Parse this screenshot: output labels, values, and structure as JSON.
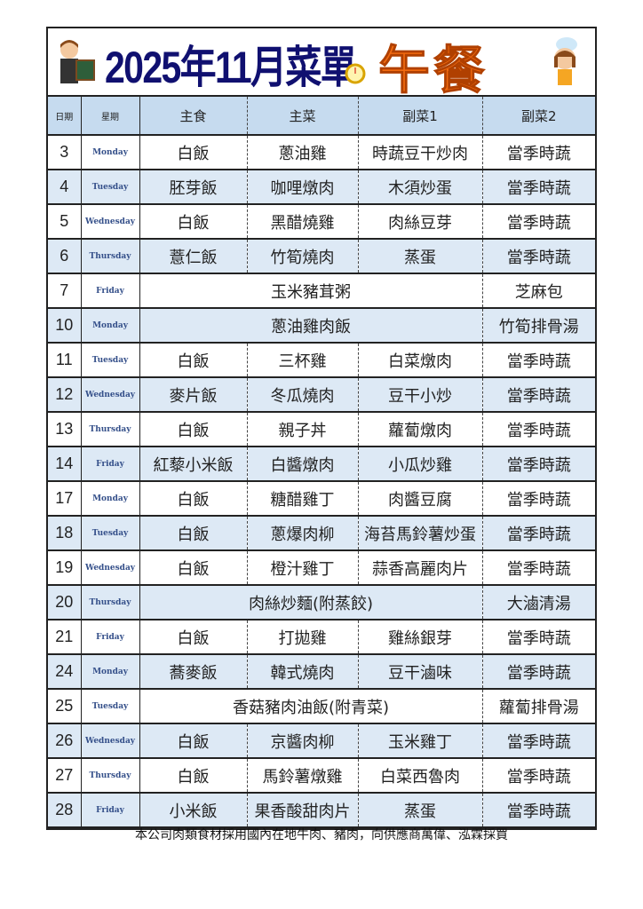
{
  "title": "2025年11月菜單",
  "meal": "午餐",
  "headers": {
    "date": "日期",
    "weekday": "星期",
    "staple": "主食",
    "main": "主菜",
    "side1": "副菜1",
    "side2": "副菜2"
  },
  "rows": [
    {
      "date": "3",
      "day": "Monday",
      "staple": "白飯",
      "main": "蔥油雞",
      "side1": "時蔬豆干炒肉",
      "side2": "當季時蔬"
    },
    {
      "date": "4",
      "day": "Tuesday",
      "staple": "胚芽飯",
      "main": "咖哩燉肉",
      "side1": "木須炒蛋",
      "side2": "當季時蔬"
    },
    {
      "date": "5",
      "day": "Wednesday",
      "staple": "白飯",
      "main": "黑醋燒雞",
      "side1": "肉絲豆芽",
      "side2": "當季時蔬"
    },
    {
      "date": "6",
      "day": "Thursday",
      "staple": "薏仁飯",
      "main": "竹筍燒肉",
      "side1": "蒸蛋",
      "side2": "當季時蔬"
    },
    {
      "date": "7",
      "day": "Friday",
      "merged": "玉米豬茸粥",
      "side2": "芝麻包"
    },
    {
      "date": "10",
      "day": "Monday",
      "merged": "蔥油雞肉飯",
      "side2": "竹筍排骨湯"
    },
    {
      "date": "11",
      "day": "Tuesday",
      "staple": "白飯",
      "main": "三杯雞",
      "side1": "白菜燉肉",
      "side2": "當季時蔬"
    },
    {
      "date": "12",
      "day": "Wednesday",
      "staple": "麥片飯",
      "main": "冬瓜燒肉",
      "side1": "豆干小炒",
      "side2": "當季時蔬"
    },
    {
      "date": "13",
      "day": "Thursday",
      "staple": "白飯",
      "main": "親子丼",
      "side1": "蘿蔔燉肉",
      "side2": "當季時蔬"
    },
    {
      "date": "14",
      "day": "Friday",
      "staple": "紅藜小米飯",
      "main": "白醬燉肉",
      "side1": "小瓜炒雞",
      "side2": "當季時蔬"
    },
    {
      "date": "17",
      "day": "Monday",
      "staple": "白飯",
      "main": "糖醋雞丁",
      "side1": "肉醬豆腐",
      "side2": "當季時蔬"
    },
    {
      "date": "18",
      "day": "Tuesday",
      "staple": "白飯",
      "main": "蔥爆肉柳",
      "side1": "海苔馬鈴薯炒蛋",
      "side2": "當季時蔬"
    },
    {
      "date": "19",
      "day": "Wednesday",
      "staple": "白飯",
      "main": "橙汁雞丁",
      "side1": "蒜香高麗肉片",
      "side2": "當季時蔬"
    },
    {
      "date": "20",
      "day": "Thursday",
      "merged": "肉絲炒麵(附蒸餃)",
      "side2": "大滷清湯"
    },
    {
      "date": "21",
      "day": "Friday",
      "staple": "白飯",
      "main": "打拋雞",
      "side1": "雞絲銀芽",
      "side2": "當季時蔬"
    },
    {
      "date": "24",
      "day": "Monday",
      "staple": "蕎麥飯",
      "main": "韓式燒肉",
      "side1": "豆干滷味",
      "side2": "當季時蔬"
    },
    {
      "date": "25",
      "day": "Tuesday",
      "merged": "香菇豬肉油飯(附青菜)",
      "side2": "蘿蔔排骨湯"
    },
    {
      "date": "26",
      "day": "Wednesday",
      "staple": "白飯",
      "main": "京醬肉柳",
      "side1": "玉米雞丁",
      "side2": "當季時蔬"
    },
    {
      "date": "27",
      "day": "Thursday",
      "staple": "白飯",
      "main": "馬鈴薯燉雞",
      "side1": "白菜西魯肉",
      "side2": "當季時蔬"
    },
    {
      "date": "28",
      "day": "Friday",
      "staple": "小米飯",
      "main": "果香酸甜肉片",
      "side1": "蒸蛋",
      "side2": "當季時蔬"
    }
  ],
  "colors": {
    "title": "#101070",
    "meal": "#f26a10",
    "header_bg": "#c6dbef",
    "shade": "#dde9f5"
  },
  "footer": "本公司肉類食材採用國內在地牛肉、豬肉，向供應商萬偉、泓霖採買"
}
